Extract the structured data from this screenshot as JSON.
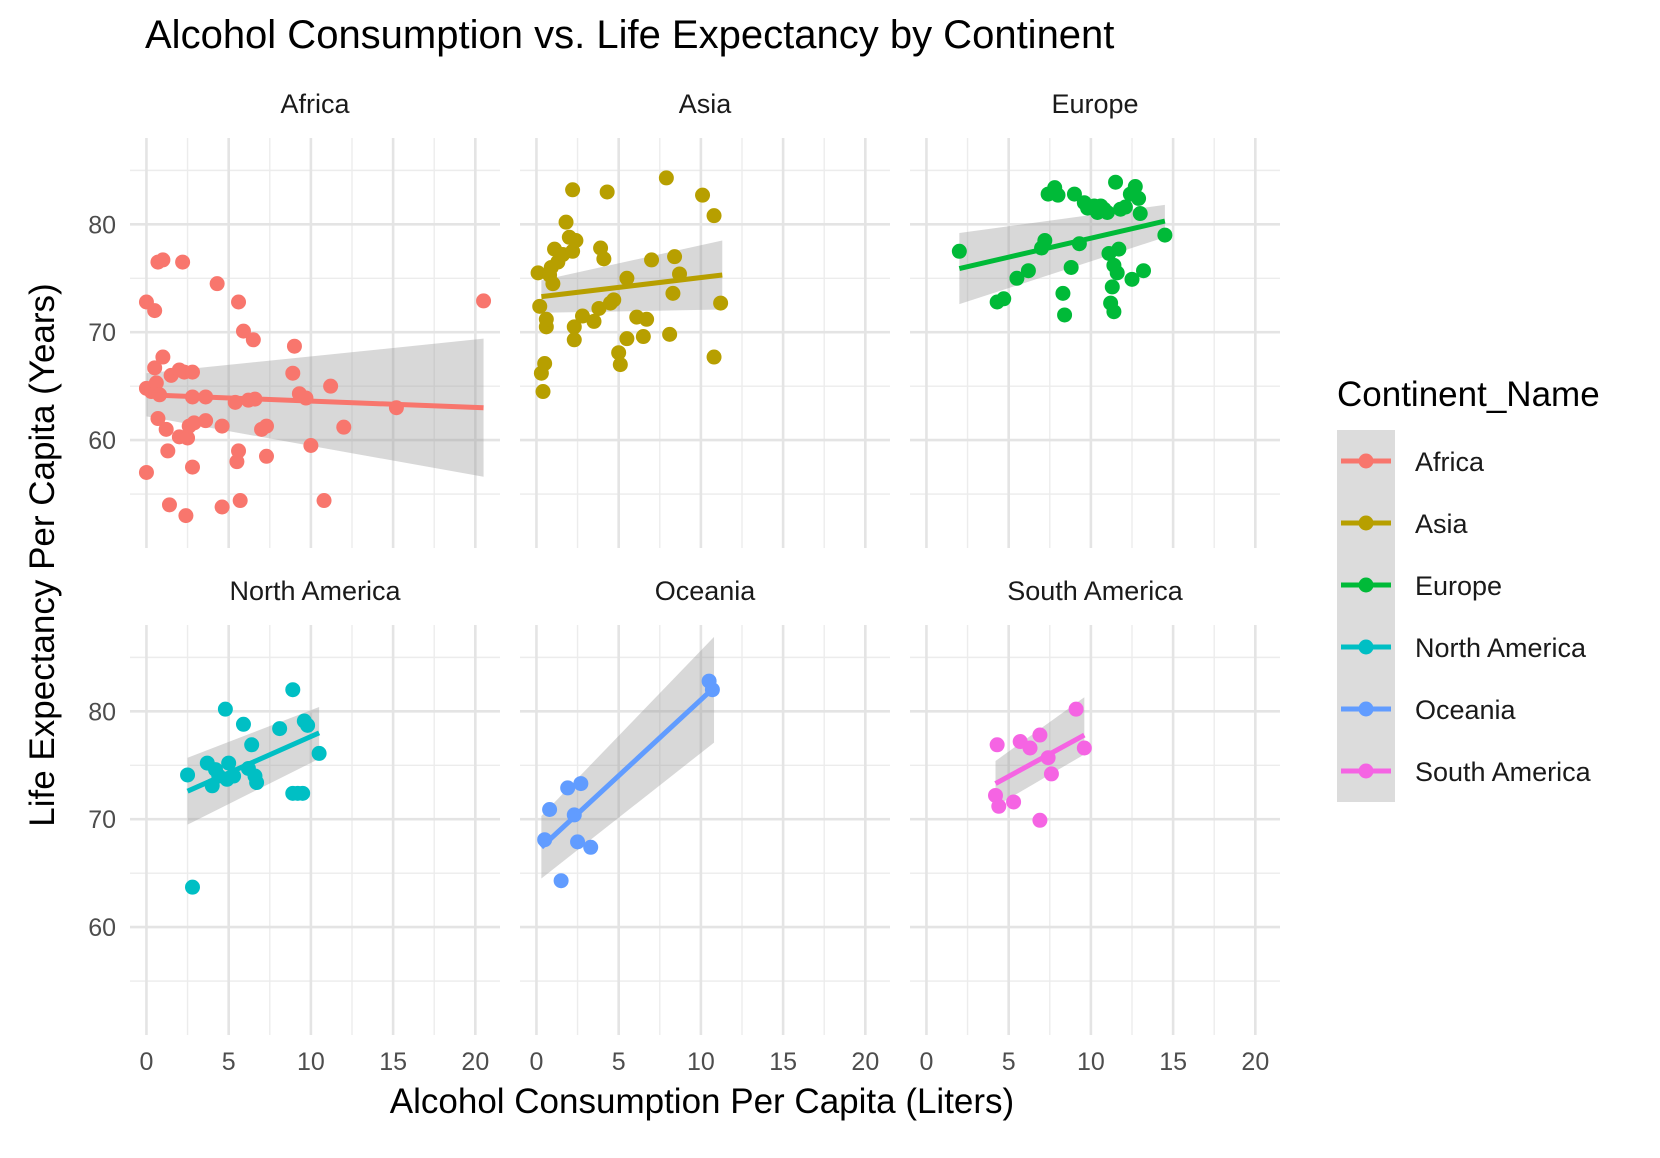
{
  "chart_data": {
    "type": "scatter",
    "title": "Alcohol Consumption vs. Life Expectancy by Continent",
    "xlabel": "Alcohol Consumption Per Capita (Liters)",
    "ylabel": "Life Expectancy Per Capita (Years)",
    "xlim": [
      -1,
      21.5
    ],
    "ylim": [
      50,
      88
    ],
    "x_ticks": [
      0,
      5,
      10,
      15,
      20
    ],
    "y_ticks": [
      60,
      70,
      80
    ],
    "grid": true,
    "legend": {
      "title": "Continent_Name",
      "position": "right"
    },
    "facets": [
      {
        "name": "Africa",
        "color": "#F8766D",
        "trend": {
          "x": [
            0,
            20.5
          ],
          "y": [
            64.2,
            63.0
          ],
          "se_lo": [
            62.2,
            56.6
          ],
          "se_hi": [
            66.2,
            69.4
          ]
        },
        "points": [
          [
            0,
            72.8
          ],
          [
            0.5,
            72.0
          ],
          [
            0.7,
            76.5
          ],
          [
            1.0,
            76.7
          ],
          [
            2.2,
            76.5
          ],
          [
            0,
            64.8
          ],
          [
            0.3,
            64.5
          ],
          [
            0.5,
            66.7
          ],
          [
            0.6,
            65.3
          ],
          [
            0.8,
            64.2
          ],
          [
            1.0,
            67.7
          ],
          [
            0.7,
            62.0
          ],
          [
            1.2,
            61.0
          ],
          [
            0,
            57.0
          ],
          [
            1.3,
            59.0
          ],
          [
            1.4,
            54.0
          ],
          [
            1.5,
            66.0
          ],
          [
            2.0,
            66.5
          ],
          [
            2.3,
            66.3
          ],
          [
            2.8,
            66.3
          ],
          [
            2.0,
            60.3
          ],
          [
            2.5,
            60.2
          ],
          [
            2.6,
            61.3
          ],
          [
            2.9,
            61.6
          ],
          [
            2.8,
            64.0
          ],
          [
            2.8,
            57.5
          ],
          [
            2.4,
            53.0
          ],
          [
            3.6,
            61.8
          ],
          [
            3.6,
            64.0
          ],
          [
            4.3,
            74.5
          ],
          [
            4.6,
            53.8
          ],
          [
            4.6,
            61.3
          ],
          [
            5.4,
            63.5
          ],
          [
            5.5,
            58.0
          ],
          [
            5.6,
            59.0
          ],
          [
            5.6,
            72.8
          ],
          [
            5.7,
            54.4
          ],
          [
            5.9,
            70.1
          ],
          [
            6.2,
            63.7
          ],
          [
            6.5,
            69.3
          ],
          [
            6.6,
            63.8
          ],
          [
            7.0,
            61.0
          ],
          [
            7.3,
            61.3
          ],
          [
            7.3,
            58.5
          ],
          [
            8.9,
            66.2
          ],
          [
            9.0,
            68.7
          ],
          [
            9.3,
            64.3
          ],
          [
            9.7,
            63.9
          ],
          [
            10.0,
            59.5
          ],
          [
            10.8,
            54.4
          ],
          [
            11.2,
            65.0
          ],
          [
            12.0,
            61.2
          ],
          [
            15.2,
            63.0
          ],
          [
            20.5,
            72.9
          ]
        ]
      },
      {
        "name": "Asia",
        "color": "#B79F00",
        "trend": {
          "x": [
            0.3,
            11.3
          ],
          "y": [
            73.3,
            75.3
          ],
          "se_lo": [
            71.8,
            72.1
          ],
          "se_hi": [
            74.8,
            78.5
          ]
        },
        "points": [
          [
            0.1,
            75.5
          ],
          [
            0.2,
            72.4
          ],
          [
            0.3,
            66.2
          ],
          [
            0.4,
            64.5
          ],
          [
            0.5,
            67.1
          ],
          [
            0.6,
            70.5
          ],
          [
            0.6,
            71.2
          ],
          [
            0.8,
            75.3
          ],
          [
            0.9,
            76.0
          ],
          [
            1.0,
            74.5
          ],
          [
            1.1,
            77.7
          ],
          [
            1.3,
            76.5
          ],
          [
            1.6,
            77.2
          ],
          [
            1.8,
            80.2
          ],
          [
            2.0,
            78.8
          ],
          [
            2.2,
            83.2
          ],
          [
            2.2,
            77.5
          ],
          [
            2.3,
            70.5
          ],
          [
            2.3,
            69.3
          ],
          [
            2.4,
            78.5
          ],
          [
            2.8,
            71.5
          ],
          [
            3.5,
            71.0
          ],
          [
            3.8,
            72.2
          ],
          [
            3.9,
            77.8
          ],
          [
            4.1,
            76.8
          ],
          [
            4.3,
            83.0
          ],
          [
            4.5,
            72.7
          ],
          [
            4.7,
            73.0
          ],
          [
            5.0,
            68.1
          ],
          [
            5.1,
            67.0
          ],
          [
            5.5,
            69.4
          ],
          [
            5.5,
            75.0
          ],
          [
            6.1,
            71.4
          ],
          [
            6.5,
            69.6
          ],
          [
            6.7,
            71.2
          ],
          [
            7.0,
            76.7
          ],
          [
            7.9,
            84.3
          ],
          [
            8.1,
            69.8
          ],
          [
            8.3,
            73.6
          ],
          [
            8.4,
            77.0
          ],
          [
            8.7,
            75.4
          ],
          [
            10.1,
            82.7
          ],
          [
            10.8,
            80.8
          ],
          [
            10.8,
            67.7
          ],
          [
            11.2,
            72.7
          ]
        ]
      },
      {
        "name": "Europe",
        "color": "#00BA38",
        "trend": {
          "x": [
            2.0,
            14.5
          ],
          "y": [
            75.9,
            80.3
          ],
          "se_lo": [
            72.6,
            78.8
          ],
          "se_hi": [
            79.2,
            81.8
          ]
        },
        "points": [
          [
            2.0,
            77.5
          ],
          [
            4.3,
            72.8
          ],
          [
            4.7,
            73.1
          ],
          [
            5.5,
            75.0
          ],
          [
            6.2,
            75.7
          ],
          [
            7.0,
            77.8
          ],
          [
            7.2,
            78.5
          ],
          [
            7.4,
            82.8
          ],
          [
            7.8,
            83.4
          ],
          [
            8.0,
            82.7
          ],
          [
            8.3,
            73.6
          ],
          [
            8.4,
            71.6
          ],
          [
            8.8,
            76.0
          ],
          [
            9.0,
            82.8
          ],
          [
            9.3,
            78.2
          ],
          [
            9.6,
            82.0
          ],
          [
            9.8,
            81.5
          ],
          [
            10.2,
            81.7
          ],
          [
            10.4,
            81.1
          ],
          [
            10.6,
            81.7
          ],
          [
            10.8,
            81.4
          ],
          [
            11.0,
            81.1
          ],
          [
            11.1,
            77.3
          ],
          [
            11.2,
            72.7
          ],
          [
            11.3,
            74.2
          ],
          [
            11.4,
            71.9
          ],
          [
            11.4,
            76.2
          ],
          [
            11.5,
            83.9
          ],
          [
            11.6,
            75.5
          ],
          [
            11.7,
            77.7
          ],
          [
            11.8,
            81.4
          ],
          [
            12.1,
            81.6
          ],
          [
            12.4,
            82.8
          ],
          [
            12.5,
            74.9
          ],
          [
            12.7,
            83.5
          ],
          [
            12.9,
            82.4
          ],
          [
            13.0,
            81.0
          ],
          [
            13.2,
            75.7
          ],
          [
            14.5,
            79.0
          ]
        ]
      },
      {
        "name": "North America",
        "color": "#00BFC4",
        "trend": {
          "x": [
            2.5,
            10.5
          ],
          "y": [
            72.6,
            78.0
          ],
          "se_lo": [
            69.5,
            75.6
          ],
          "se_hi": [
            75.7,
            80.4
          ]
        },
        "points": [
          [
            2.5,
            74.1
          ],
          [
            2.8,
            63.7
          ],
          [
            3.7,
            75.2
          ],
          [
            4.0,
            73.1
          ],
          [
            4.2,
            74.6
          ],
          [
            4.4,
            74.0
          ],
          [
            4.8,
            80.2
          ],
          [
            4.9,
            73.7
          ],
          [
            5.0,
            75.2
          ],
          [
            5.3,
            74.0
          ],
          [
            5.9,
            78.8
          ],
          [
            6.2,
            74.7
          ],
          [
            6.4,
            76.9
          ],
          [
            6.6,
            74.0
          ],
          [
            6.7,
            73.4
          ],
          [
            8.1,
            78.4
          ],
          [
            8.9,
            72.4
          ],
          [
            8.9,
            82.0
          ],
          [
            9.2,
            72.4
          ],
          [
            9.5,
            72.4
          ],
          [
            9.6,
            79.1
          ],
          [
            9.8,
            78.7
          ],
          [
            10.5,
            76.1
          ]
        ]
      },
      {
        "name": "Oceania",
        "color": "#619CFF",
        "trend": {
          "x": [
            0.3,
            10.8
          ],
          "y": [
            67.4,
            82.2
          ],
          "se_lo": [
            64.5,
            77.1
          ],
          "se_hi": [
            70.3,
            86.9
          ]
        },
        "points": [
          [
            0.5,
            68.1
          ],
          [
            0.8,
            70.9
          ],
          [
            1.5,
            64.3
          ],
          [
            1.9,
            72.9
          ],
          [
            2.3,
            70.4
          ],
          [
            2.5,
            67.9
          ],
          [
            2.7,
            73.3
          ],
          [
            3.3,
            67.4
          ],
          [
            10.5,
            82.8
          ],
          [
            10.7,
            82.0
          ]
        ]
      },
      {
        "name": "South America",
        "color": "#F564E3",
        "trend": {
          "x": [
            4.2,
            9.6
          ],
          "y": [
            73.3,
            77.8
          ],
          "se_lo": [
            71.2,
            76.0
          ],
          "se_hi": [
            75.4,
            81.3
          ]
        },
        "points": [
          [
            4.2,
            72.2
          ],
          [
            4.3,
            76.9
          ],
          [
            4.4,
            71.2
          ],
          [
            5.3,
            71.6
          ],
          [
            5.7,
            77.2
          ],
          [
            6.3,
            76.6
          ],
          [
            6.9,
            69.9
          ],
          [
            6.9,
            77.8
          ],
          [
            7.4,
            75.7
          ],
          [
            7.6,
            74.2
          ],
          [
            9.1,
            80.2
          ],
          [
            9.6,
            76.6
          ]
        ]
      }
    ]
  }
}
